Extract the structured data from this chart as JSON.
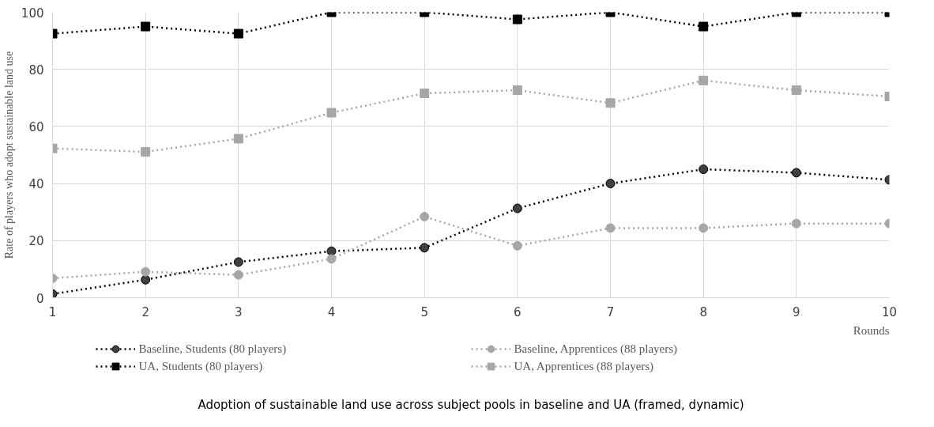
{
  "chart_data": {
    "type": "line",
    "xlabel": "Rounds",
    "ylabel": "Rate of players who adopt sustainable land use",
    "x": [
      1,
      2,
      3,
      4,
      5,
      6,
      7,
      8,
      9,
      10
    ],
    "series": [
      {
        "name": "Baseline, Students (80 players)",
        "color": "#000000",
        "marker": "circle",
        "values": [
          1.3,
          6.3,
          12.5,
          16.3,
          17.5,
          31.3,
          40,
          45,
          43.8,
          41.3
        ]
      },
      {
        "name": "Baseline, Apprentices (88 players)",
        "color": "#a6a6a6",
        "marker": "circle",
        "values": [
          6.8,
          9.1,
          8,
          13.6,
          28.4,
          18.2,
          24.4,
          24.4,
          26,
          26
        ]
      },
      {
        "name": "UA, Students (80 players)",
        "color": "#000000",
        "marker": "square",
        "values": [
          92.5,
          95,
          92.5,
          100,
          100,
          97.5,
          100,
          95,
          100,
          100
        ]
      },
      {
        "name": "UA, Apprentices (88 players)",
        "color": "#a6a6a6",
        "marker": "square",
        "values": [
          52.3,
          51.1,
          55.7,
          64.8,
          71.6,
          72.7,
          68.2,
          76.1,
          72.7,
          70.5
        ]
      }
    ],
    "xlim": [
      1,
      10
    ],
    "xticks": [
      1,
      2,
      3,
      4,
      5,
      6,
      7,
      8,
      9,
      10
    ],
    "ylim": [
      0,
      100
    ],
    "yticks": [
      0,
      20,
      40,
      60,
      80,
      100
    ],
    "grid": true,
    "legend": "bottom",
    "line_style": "dotted",
    "annotations": [
      "Adoption of sustainable land use across subject pools in baseline and UA (framed, dynamic)"
    ]
  }
}
